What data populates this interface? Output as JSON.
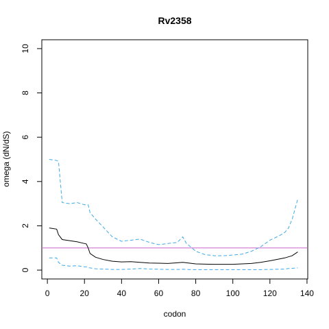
{
  "chart_data": {
    "type": "line",
    "title": "Rv2358",
    "x_label": "codon",
    "y_label": "omega (dN/dS)",
    "x": [
      1,
      5,
      6,
      8,
      12,
      16,
      20,
      21,
      22,
      23,
      26,
      30,
      35,
      40,
      45,
      50,
      55,
      60,
      65,
      70,
      73,
      75,
      78,
      80,
      85,
      90,
      95,
      100,
      105,
      110,
      115,
      120,
      125,
      128,
      130,
      132,
      135
    ],
    "series": [
      {
        "color": "#000000",
        "dash": false,
        "values": [
          1.9,
          1.85,
          1.6,
          1.38,
          1.33,
          1.28,
          1.2,
          1.18,
          1.0,
          0.75,
          0.58,
          0.48,
          0.4,
          0.37,
          0.38,
          0.35,
          0.32,
          0.31,
          0.3,
          0.33,
          0.35,
          0.33,
          0.3,
          0.28,
          0.27,
          0.26,
          0.26,
          0.26,
          0.28,
          0.3,
          0.35,
          0.42,
          0.5,
          0.55,
          0.6,
          0.65,
          0.82
        ]
      },
      {
        "color": "#3fa9e6",
        "dash": true,
        "values": [
          5.0,
          4.95,
          4.9,
          3.05,
          3.0,
          3.05,
          2.95,
          2.95,
          2.95,
          2.6,
          2.3,
          1.95,
          1.5,
          1.3,
          1.35,
          1.4,
          1.25,
          1.15,
          1.2,
          1.25,
          1.5,
          1.2,
          1.0,
          0.85,
          0.7,
          0.65,
          0.65,
          0.68,
          0.72,
          0.85,
          1.05,
          1.35,
          1.55,
          1.7,
          1.9,
          2.3,
          3.2
        ]
      },
      {
        "color": "#3fa9e6",
        "dash": true,
        "values": [
          0.55,
          0.55,
          0.35,
          0.22,
          0.18,
          0.2,
          0.15,
          0.15,
          0.12,
          0.1,
          0.06,
          0.05,
          0.03,
          0.03,
          0.05,
          0.07,
          0.05,
          0.04,
          0.03,
          0.03,
          0.04,
          0.03,
          0.02,
          0.02,
          0.02,
          0.02,
          0.02,
          0.02,
          0.02,
          0.02,
          0.02,
          0.03,
          0.04,
          0.05,
          0.07,
          0.08,
          0.1
        ]
      }
    ],
    "hline": {
      "value": 1,
      "color": "#cc66cc"
    },
    "xlim": [
      -3,
      140.4
    ],
    "xticks": [
      0,
      20,
      40,
      60,
      80,
      100,
      120,
      140
    ],
    "ylim": [
      -0.4,
      10.4
    ],
    "yticks": [
      0,
      2,
      4,
      6,
      8,
      10
    ]
  }
}
